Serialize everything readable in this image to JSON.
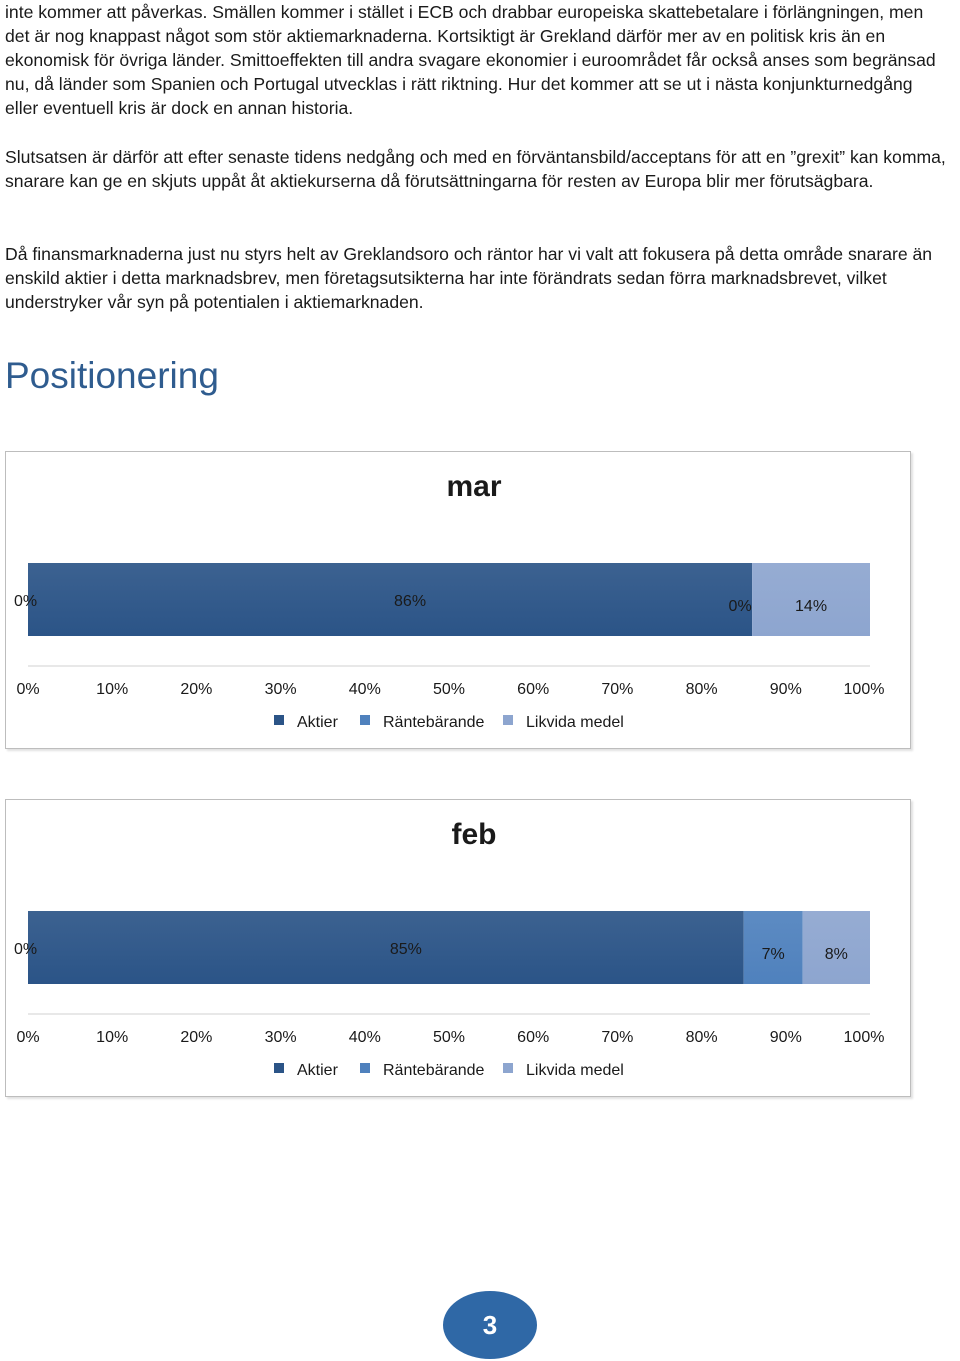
{
  "paragraphs": [
    "inte kommer att påverkas. Smällen kommer i stället i ECB och drabbar europeiska skattebetalare i förlängningen, men det är nog knappast något som stör aktiemarknaderna. Kortsiktigt är Grekland därför mer av en politisk kris än en ekonomisk för övriga länder. Smittoeffekten till andra svagare ekonomier i euroområdet får också anses som begränsad nu, då länder som Spanien och Portugal utvecklas i rätt riktning. Hur det kommer att se ut i nästa konjunkturnedgång eller eventuell kris är dock en annan historia.",
    "Slutsatsen är därför att efter senaste tidens nedgång och med en förväntansbild/acceptans för att en ”grexit” kan komma, snarare kan ge en skjuts uppåt åt aktiekurserna då förutsättningarna för resten av Europa blir mer förutsägbara.",
    "Då finansmarknaderna just nu styrs helt av Greklandsoro och räntor har vi valt  att fokusera på detta område snarare än enskild aktier i detta marknadsbrev, men företagsutsikterna har inte förändrats sedan förra marknadsbrevet, vilket understryker vår syn på potentialen i aktiemarknaden."
  ],
  "section_heading": "Positionering",
  "page_number": "3",
  "chart_data": [
    {
      "type": "bar",
      "orientation": "horizontal-stacked-100",
      "title": "mar",
      "categories": [
        ""
      ],
      "series": [
        {
          "name": "Aktier",
          "values": [
            86
          ],
          "label": "86%",
          "color": "#2b5487"
        },
        {
          "name": "Räntebärande",
          "values": [
            0
          ],
          "label": "0%",
          "color": "#4f81bd"
        },
        {
          "name": "Likvida medel",
          "values": [
            14
          ],
          "label": "14%",
          "color": "#8da5cf"
        }
      ],
      "extra_label": "0%",
      "xlim": [
        0,
        100
      ],
      "ticks": [
        "0%",
        "10%",
        "20%",
        "30%",
        "40%",
        "50%",
        "60%",
        "70%",
        "80%",
        "90%",
        "100%"
      ],
      "legend_position": "bottom",
      "grid": false
    },
    {
      "type": "bar",
      "orientation": "horizontal-stacked-100",
      "title": "feb",
      "categories": [
        ""
      ],
      "series": [
        {
          "name": "Aktier",
          "values": [
            85
          ],
          "label": "85%",
          "color": "#2b5487"
        },
        {
          "name": "Räntebärande",
          "values": [
            7
          ],
          "label": "7%",
          "color": "#4f81bd"
        },
        {
          "name": "Likvida medel",
          "values": [
            8
          ],
          "label": "8%",
          "color": "#8da5cf"
        }
      ],
      "extra_label": "0%",
      "xlim": [
        0,
        100
      ],
      "ticks": [
        "0%",
        "10%",
        "20%",
        "30%",
        "40%",
        "50%",
        "60%",
        "70%",
        "80%",
        "90%",
        "100%"
      ],
      "legend_position": "bottom",
      "grid": false
    }
  ]
}
